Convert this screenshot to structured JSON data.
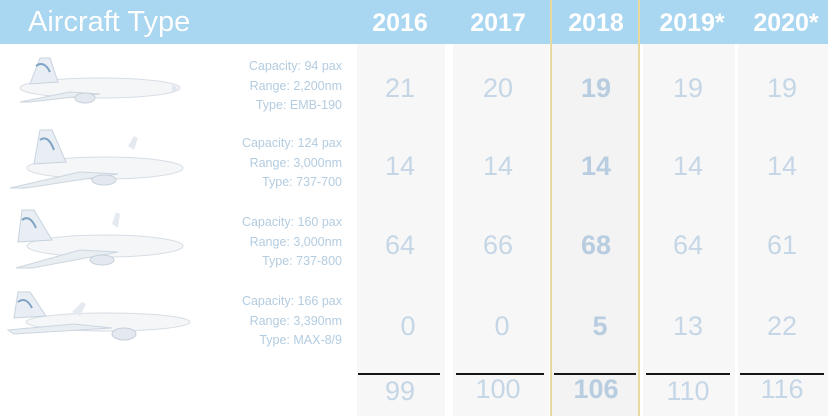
{
  "header": {
    "title": "Aircraft Type",
    "years": [
      "2016",
      "2017",
      "2018",
      "2019*",
      "2020*"
    ]
  },
  "aircraft": [
    {
      "capacity": "Capacity:  94 pax",
      "range": "Range:  2,200nm",
      "type": "Type: EMB-190",
      "values": [
        "21",
        "20",
        "19",
        "19",
        "19"
      ]
    },
    {
      "capacity": "Capacity:  124 pax",
      "range": "Range:  3,000nm",
      "type": "Type: 737-700",
      "values": [
        "14",
        "14",
        "14",
        "14",
        "14"
      ]
    },
    {
      "capacity": "Capacity:  160 pax",
      "range": "Range:  3,000nm",
      "type": "Type: 737-800",
      "values": [
        "64",
        "66",
        "68",
        "64",
        "61"
      ]
    },
    {
      "capacity": "Capacity:  166 pax",
      "range": "Range:  3,390nm",
      "type": "Type: MAX-8/9",
      "values": [
        "0",
        "0",
        "5",
        "13",
        "22"
      ]
    }
  ],
  "totals": [
    "99",
    "100",
    "106",
    "110",
    "116"
  ],
  "colors": {
    "header": "#a9d6f0",
    "value_text": "#c5d6e6",
    "highlight_line": "#e8d9a0"
  }
}
